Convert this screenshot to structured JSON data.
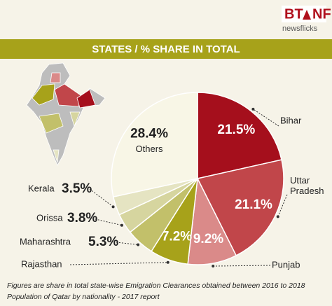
{
  "logo": {
    "left": "BT",
    "right": "NF",
    "tagline": "newsflicks"
  },
  "chart_data": {
    "type": "pie",
    "title": "STATES / % SHARE IN TOTAL",
    "categories": [
      "Bihar",
      "Uttar Pradesh",
      "Punjab",
      "Rajasthan",
      "Maharashtra",
      "Orissa",
      "Kerala",
      "Others"
    ],
    "values": [
      21.5,
      21.1,
      9.2,
      7.2,
      5.3,
      3.8,
      3.5,
      28.4
    ],
    "value_labels": [
      "21.5%",
      "21.1%",
      "9.2%",
      "7.2%",
      "5.3%",
      "3.8%",
      "3.5%",
      "28.4%"
    ],
    "colors": [
      "#a50f1c",
      "#c1464a",
      "#da8a89",
      "#a7a21a",
      "#c2c06a",
      "#d6d59f",
      "#e5e4c2",
      "#f8f6e6"
    ]
  },
  "footnotes": [
    "Figures are share in total state-wise Emigration Clearances obtained between 2016 to 2018",
    "Population of Qatar by nationality - 2017 report"
  ]
}
